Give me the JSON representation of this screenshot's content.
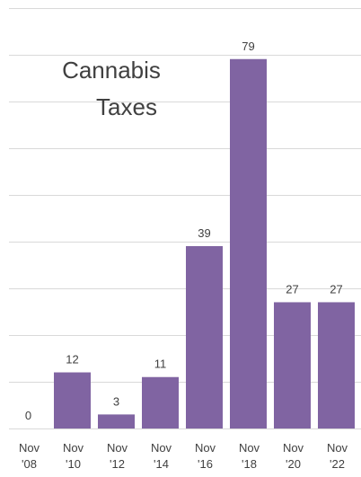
{
  "chart_data": {
    "type": "bar",
    "title": "Cannabis Taxes",
    "title_lines": [
      "Cannabis",
      "Taxes"
    ],
    "categories": [
      [
        "Nov",
        "'08"
      ],
      [
        "Nov",
        "'10"
      ],
      [
        "Nov",
        "'12"
      ],
      [
        "Nov",
        "'14"
      ],
      [
        "Nov",
        "'16"
      ],
      [
        "Nov",
        "'18"
      ],
      [
        "Nov",
        "'20"
      ],
      [
        "Nov",
        "'22"
      ]
    ],
    "values": [
      0,
      12,
      3,
      11,
      39,
      79,
      27,
      27
    ],
    "ylim": [
      0,
      90
    ],
    "grid": true,
    "bar_color": "#8064a2"
  }
}
